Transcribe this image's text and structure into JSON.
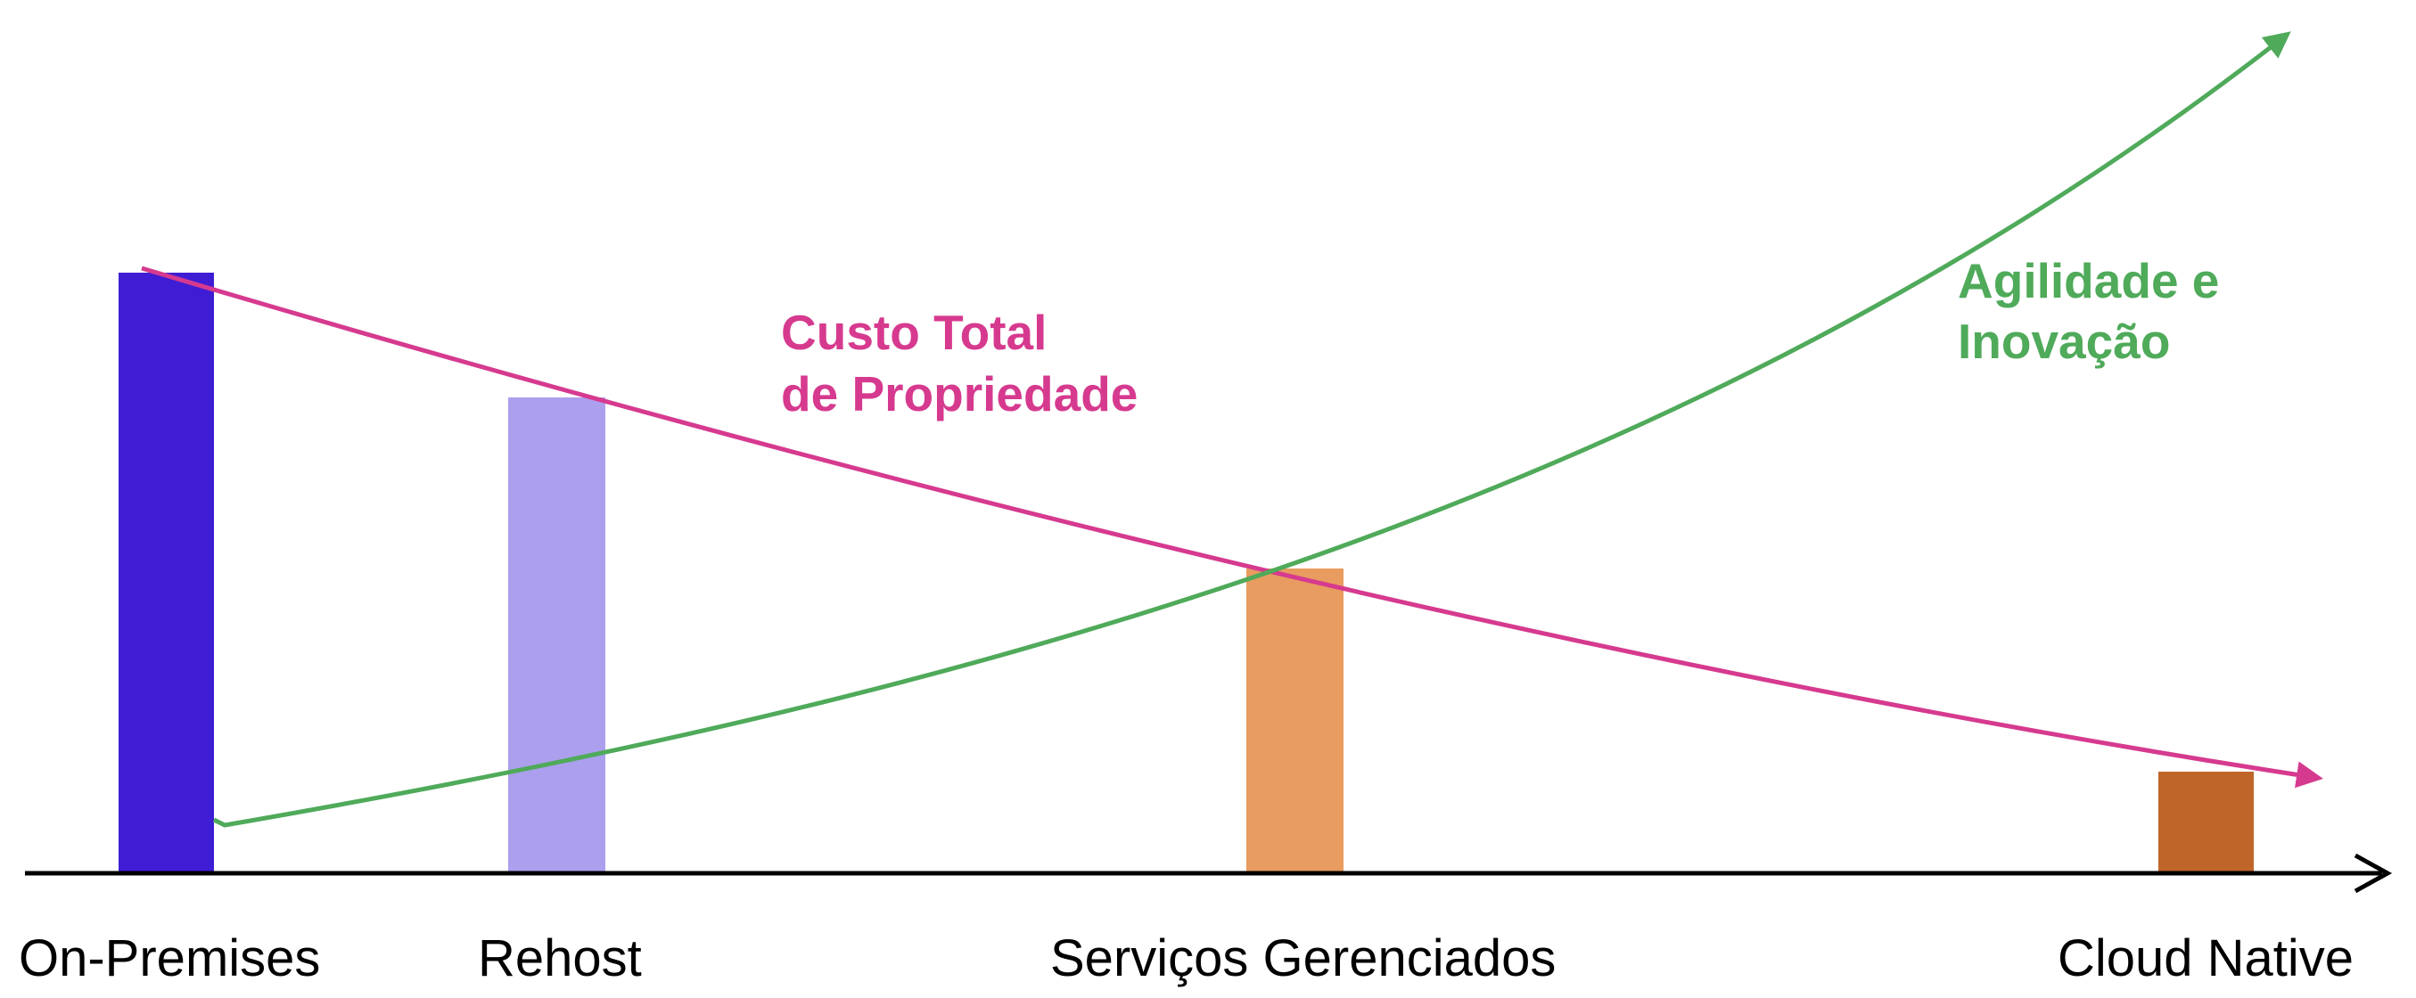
{
  "curves": [
    {
      "label_lines": [
        "Custo Total",
        "de Propriedade"
      ]
    },
    {
      "label_lines": [
        "Agilidade e",
        "Inovação"
      ]
    }
  ],
  "stages": [
    "On-Premises",
    "Rehost",
    "Serviços Gerenciados",
    "Cloud Native"
  ]
}
